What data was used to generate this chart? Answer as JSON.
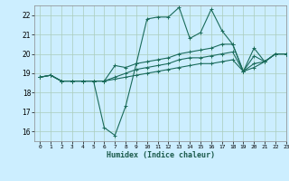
{
  "xlabel": "Humidex (Indice chaleur)",
  "ylabel": "",
  "bg_color": "#cceeff",
  "grid_color": "#aaccbb",
  "line_color": "#1a6b5a",
  "xlim": [
    -0.5,
    23
  ],
  "ylim": [
    15.5,
    22.5
  ],
  "yticks": [
    16,
    17,
    18,
    19,
    20,
    21,
    22
  ],
  "xticks": [
    0,
    1,
    2,
    3,
    4,
    5,
    6,
    7,
    8,
    9,
    10,
    11,
    12,
    13,
    14,
    15,
    16,
    17,
    18,
    19,
    20,
    21,
    22,
    23
  ],
  "series": [
    [
      18.8,
      18.9,
      18.6,
      18.6,
      18.6,
      18.6,
      16.2,
      15.8,
      17.3,
      19.5,
      21.8,
      21.9,
      21.9,
      22.4,
      20.8,
      21.1,
      22.3,
      21.2,
      20.5,
      19.1,
      20.3,
      19.6,
      20.0,
      20.0
    ],
    [
      18.8,
      18.9,
      18.6,
      18.6,
      18.6,
      18.6,
      18.6,
      19.4,
      19.3,
      19.5,
      19.6,
      19.7,
      19.8,
      20.0,
      20.1,
      20.2,
      20.3,
      20.5,
      20.5,
      19.1,
      19.9,
      19.6,
      20.0,
      20.0
    ],
    [
      18.8,
      18.9,
      18.6,
      18.6,
      18.6,
      18.6,
      18.6,
      18.8,
      19.0,
      19.2,
      19.3,
      19.4,
      19.5,
      19.7,
      19.8,
      19.8,
      19.9,
      20.0,
      20.1,
      19.1,
      19.5,
      19.6,
      20.0,
      20.0
    ],
    [
      18.8,
      18.9,
      18.6,
      18.6,
      18.6,
      18.6,
      18.6,
      18.7,
      18.8,
      18.9,
      19.0,
      19.1,
      19.2,
      19.3,
      19.4,
      19.5,
      19.5,
      19.6,
      19.7,
      19.1,
      19.3,
      19.6,
      20.0,
      20.0
    ]
  ]
}
